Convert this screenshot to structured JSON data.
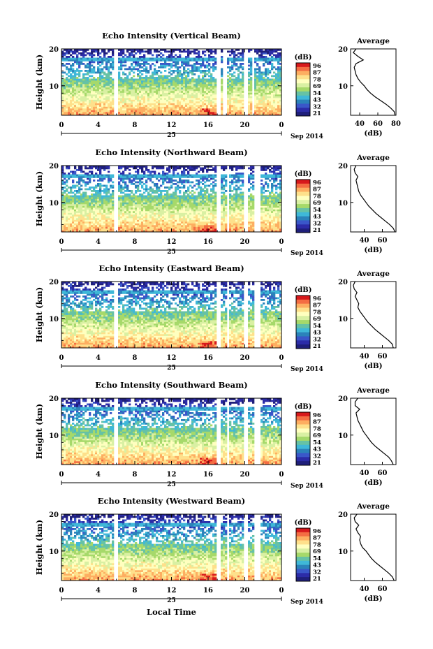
{
  "figure": {
    "date_label": "Sep 2014",
    "day_label": "25",
    "xlabel": "Local Time"
  },
  "colorbar": {
    "unit": "(dB)",
    "ticks": [
      "96",
      "87",
      "78",
      "69",
      "54",
      "43",
      "32",
      "21"
    ],
    "colors": [
      "#d7191c",
      "#f46d43",
      "#fdae61",
      "#fee08b",
      "#ffffbf",
      "#d9f0a3",
      "#a6d96a",
      "#66c2a5",
      "#3fb8d8",
      "#2b83ba",
      "#3a57c9",
      "#2c2ca8",
      "#1f1f7a"
    ]
  },
  "profile": {
    "title": "Average",
    "xlabel": "(dB)"
  },
  "chart_data": [
    {
      "type": "heatmap",
      "title": "Echo Intensity (Vertical Beam)",
      "ylabel": "Height (km)",
      "xlim": [
        0,
        24
      ],
      "ylim": [
        2,
        20
      ],
      "x_ticks": [
        "0",
        "4",
        "8",
        "12",
        "16",
        "20",
        "0"
      ],
      "y_ticks": [
        "20",
        "10"
      ],
      "data_gaps_hours": [
        [
          5.8,
          6.1
        ],
        [
          17.0,
          17.4
        ],
        [
          17.7,
          18.0
        ],
        [
          19.8,
          20.3
        ],
        [
          20.8,
          21.1
        ]
      ],
      "profile": {
        "x_ticks": [
          "40",
          "60",
          "80"
        ],
        "xlim": [
          30,
          80
        ],
        "height_km": [
          2,
          3,
          4,
          5,
          6,
          7,
          8,
          9,
          10,
          11,
          12,
          13,
          14,
          15,
          16,
          17,
          18,
          19,
          20
        ],
        "mean_db": [
          79,
          78,
          74,
          69,
          63,
          57,
          52,
          48,
          45,
          41,
          38,
          36,
          35,
          34,
          36,
          44,
          38,
          33,
          36
        ]
      }
    },
    {
      "type": "heatmap",
      "title": "Echo Intensity (Northward Beam)",
      "ylabel": "Height (km)",
      "xlim": [
        0,
        24
      ],
      "ylim": [
        2,
        20
      ],
      "x_ticks": [
        "0",
        "4",
        "8",
        "12",
        "16",
        "20",
        "0"
      ],
      "y_ticks": [
        "20",
        "10"
      ],
      "data_gaps_hours": [
        [
          5.8,
          6.1
        ],
        [
          17.0,
          17.4
        ],
        [
          18.0,
          18.3
        ],
        [
          20.0,
          20.4
        ],
        [
          21.1,
          21.6
        ]
      ],
      "profile": {
        "x_ticks": [
          "40",
          "60"
        ],
        "xlim": [
          25,
          75
        ],
        "height_km": [
          2,
          3,
          4,
          5,
          6,
          7,
          8,
          9,
          10,
          11,
          12,
          13,
          14,
          15,
          16,
          17,
          18,
          19,
          20
        ],
        "mean_db": [
          74,
          72,
          68,
          63,
          58,
          53,
          49,
          45,
          42,
          39,
          36,
          34,
          33,
          32,
          31,
          33,
          30,
          29,
          31
        ]
      }
    },
    {
      "type": "heatmap",
      "title": "Echo Intensity (Eastward Beam)",
      "ylabel": "Height (km)",
      "xlim": [
        0,
        24
      ],
      "ylim": [
        2,
        20
      ],
      "x_ticks": [
        "0",
        "4",
        "8",
        "12",
        "16",
        "20",
        "0"
      ],
      "y_ticks": [
        "20",
        "10"
      ],
      "data_gaps_hours": [
        [
          5.8,
          6.1
        ],
        [
          17.0,
          17.4
        ],
        [
          18.0,
          18.3
        ],
        [
          20.0,
          20.4
        ],
        [
          21.1,
          21.6
        ]
      ],
      "profile": {
        "x_ticks": [
          "40",
          "60"
        ],
        "xlim": [
          25,
          75
        ],
        "height_km": [
          2,
          3,
          4,
          5,
          6,
          7,
          8,
          9,
          10,
          11,
          12,
          13,
          14,
          15,
          16,
          17,
          18,
          19,
          20
        ],
        "mean_db": [
          72,
          71,
          67,
          62,
          57,
          52,
          48,
          44,
          41,
          38,
          35,
          33,
          34,
          32,
          30,
          32,
          29,
          28,
          30
        ]
      }
    },
    {
      "type": "heatmap",
      "title": "Echo Intensity (Southward Beam)",
      "ylabel": "Height (km)",
      "xlim": [
        0,
        24
      ],
      "ylim": [
        2,
        20
      ],
      "x_ticks": [
        "0",
        "4",
        "8",
        "12",
        "16",
        "20",
        "0"
      ],
      "y_ticks": [
        "20",
        "10"
      ],
      "data_gaps_hours": [
        [
          5.8,
          6.1
        ],
        [
          17.0,
          17.4
        ],
        [
          18.0,
          18.3
        ],
        [
          20.0,
          20.4
        ],
        [
          21.1,
          21.6
        ]
      ],
      "profile": {
        "x_ticks": [
          "40",
          "60"
        ],
        "xlim": [
          25,
          75
        ],
        "height_km": [
          2,
          3,
          4,
          5,
          6,
          7,
          8,
          9,
          10,
          11,
          12,
          13,
          14,
          15,
          16,
          17,
          18,
          19,
          20
        ],
        "mean_db": [
          72,
          70,
          67,
          62,
          57,
          52,
          48,
          45,
          42,
          39,
          37,
          35,
          33,
          32,
          31,
          35,
          30,
          30,
          33
        ]
      }
    },
    {
      "type": "heatmap",
      "title": "Echo Intensity (Westward Beam)",
      "ylabel": "Height (km)",
      "xlim": [
        0,
        24
      ],
      "ylim": [
        2,
        20
      ],
      "x_ticks": [
        "0",
        "4",
        "8",
        "12",
        "16",
        "20",
        "0"
      ],
      "y_ticks": [
        "20",
        "10"
      ],
      "data_gaps_hours": [
        [
          5.8,
          6.1
        ],
        [
          17.0,
          17.4
        ],
        [
          18.0,
          18.3
        ],
        [
          20.0,
          20.4
        ],
        [
          21.1,
          21.6
        ]
      ],
      "profile": {
        "x_ticks": [
          "40",
          "60"
        ],
        "xlim": [
          25,
          75
        ],
        "height_km": [
          2,
          3,
          4,
          5,
          6,
          7,
          8,
          9,
          10,
          11,
          12,
          13,
          14,
          15,
          16,
          17,
          18,
          19,
          20
        ],
        "mean_db": [
          73,
          71,
          67,
          62,
          57,
          52,
          48,
          45,
          42,
          38,
          36,
          35,
          36,
          33,
          31,
          34,
          30,
          29,
          32
        ]
      }
    }
  ]
}
